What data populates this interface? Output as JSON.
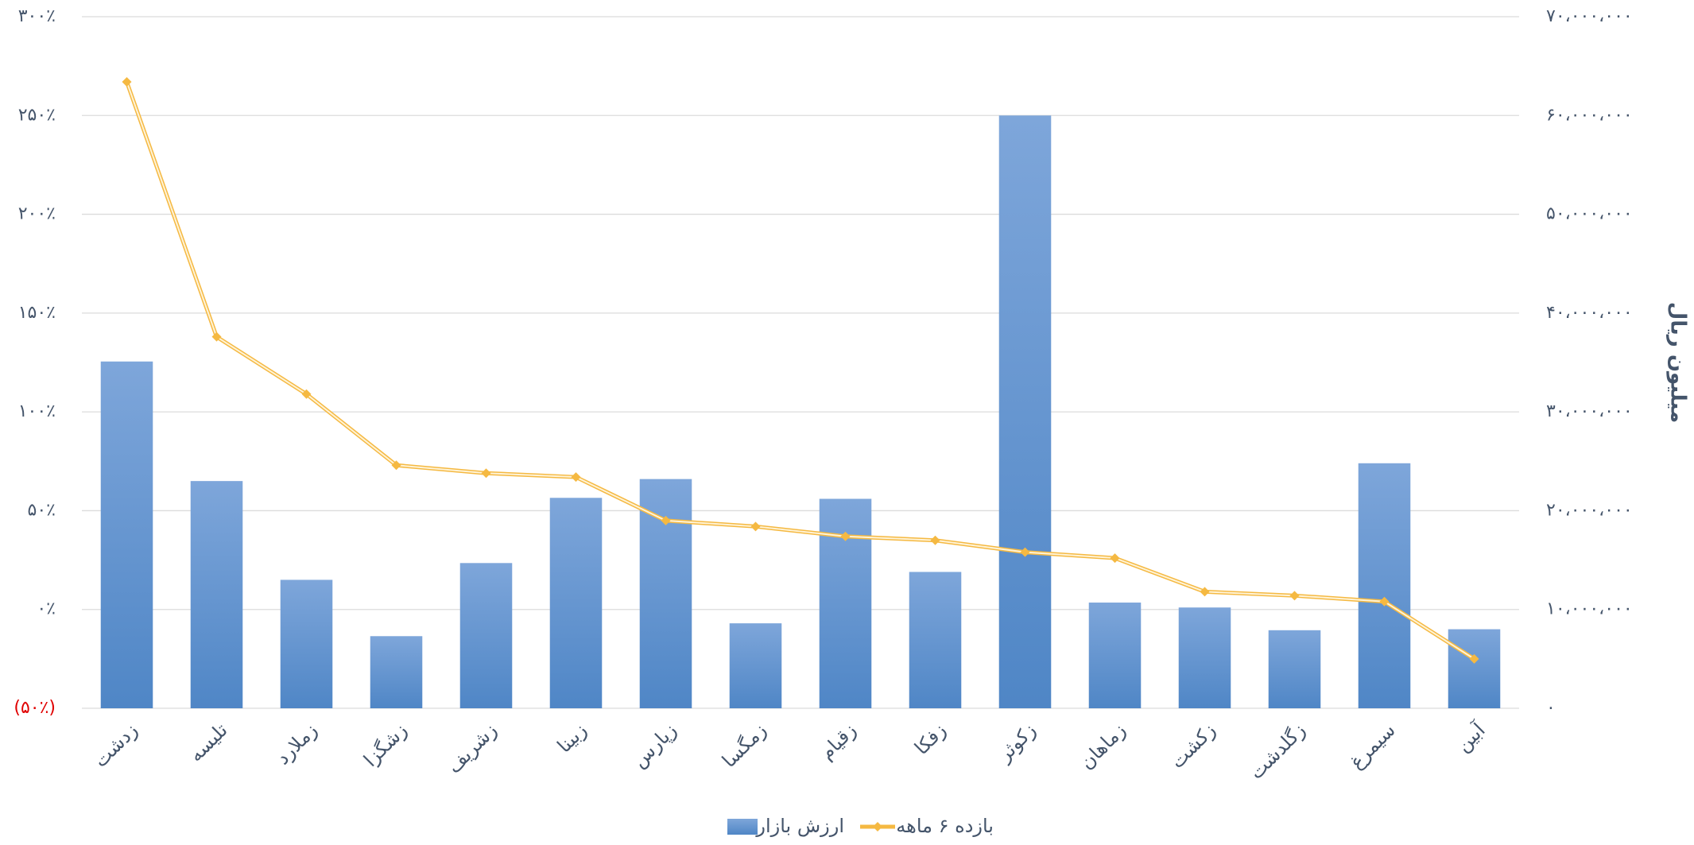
{
  "chart_data": {
    "type": "bar_line",
    "categories": [
      "زدشت",
      "تلیسه",
      "زملارد",
      "زشگزا",
      "زشریف",
      "زبینا",
      "زپارس",
      "زمگسا",
      "زقیام",
      "زفکا",
      "زکوثر",
      "زماهان",
      "زکشت",
      "زگلدشت",
      "سیمرغ",
      "آبین"
    ],
    "series": [
      {
        "name": "ارزش بازار",
        "type": "bar",
        "axis": "y2",
        "color": "#5b8fd0",
        "values": [
          35100000,
          23000000,
          13000000,
          7300000,
          14700000,
          21300000,
          23200000,
          8600000,
          21200000,
          13800000,
          60000000,
          10700000,
          10200000,
          7900000,
          24800000,
          8000000
        ]
      },
      {
        "name": "بازده ۶ ماهه",
        "type": "line",
        "axis": "y",
        "color": "#f5b942",
        "values": [
          267,
          138,
          109,
          73,
          69,
          67,
          45,
          42,
          37,
          35,
          29,
          26,
          9,
          7,
          4,
          -25
        ]
      }
    ],
    "ylim": [
      -50,
      300
    ],
    "yticks": [
      {
        "value": -50,
        "label": "(۵۰٪)"
      },
      {
        "value": 0,
        "label": "۰٪"
      },
      {
        "value": 50,
        "label": "۵۰٪"
      },
      {
        "value": 100,
        "label": "۱۰۰٪"
      },
      {
        "value": 150,
        "label": "۱۵۰٪"
      },
      {
        "value": 200,
        "label": "۲۰۰٪"
      },
      {
        "value": 250,
        "label": "۲۵۰٪"
      },
      {
        "value": 300,
        "label": "۳۰۰٪"
      }
    ],
    "y2label": "میلیون ریال",
    "y2lim": [
      0,
      70000000
    ],
    "y2ticks": [
      {
        "value": 0,
        "label": "۰"
      },
      {
        "value": 10000000,
        "label": "۱۰،۰۰۰،۰۰۰"
      },
      {
        "value": 20000000,
        "label": "۲۰،۰۰۰،۰۰۰"
      },
      {
        "value": 30000000,
        "label": "۳۰،۰۰۰،۰۰۰"
      },
      {
        "value": 40000000,
        "label": "۴۰،۰۰۰،۰۰۰"
      },
      {
        "value": 50000000,
        "label": "۵۰،۰۰۰،۰۰۰"
      },
      {
        "value": 60000000,
        "label": "۶۰،۰۰۰،۰۰۰"
      },
      {
        "value": 70000000,
        "label": "۷۰،۰۰۰،۰۰۰"
      }
    ],
    "negative_tick_color": "#e00000",
    "grid": true,
    "legend": "bottom"
  }
}
